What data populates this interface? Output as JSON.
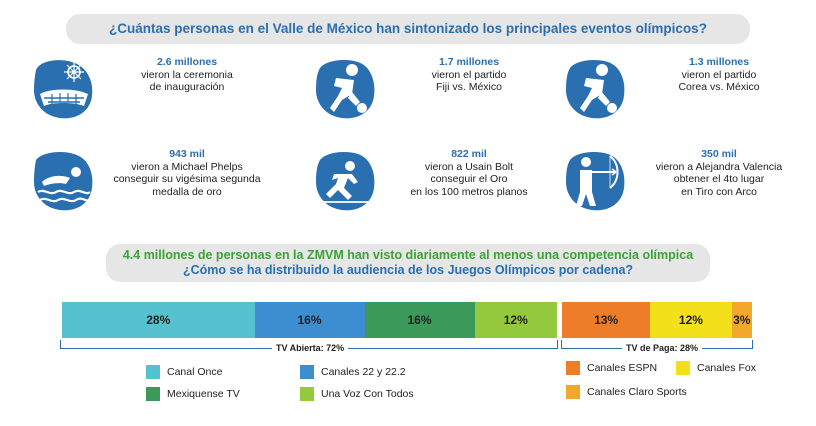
{
  "header": {
    "question": "¿Cuántas personas en el Valle de México han sintonizado los principales eventos olímpicos?"
  },
  "events": [
    {
      "number": "2.6 millones",
      "text": "vieron la ceremonia\nde inauguración",
      "icon": "stadium-icon"
    },
    {
      "number": "1.7 millones",
      "text": "vieron el partido\nFiji vs. México",
      "icon": "football-player-icon"
    },
    {
      "number": "1.3 millones",
      "text": "vieron el partido\nCorea vs. México",
      "icon": "football-player-icon"
    },
    {
      "number": "943 mil",
      "text": "vieron a Michael Phelps\nconseguir su vigésima segunda\nmedalla de oro",
      "icon": "swimmer-icon"
    },
    {
      "number": "822 mil",
      "text": "vieron a Usain Bolt\nconseguir el Oro\nen los 100 metros planos",
      "icon": "sprinter-icon"
    },
    {
      "number": "350 mil",
      "text": "vieron a Alejandra Valencia\nobtener el 4to lugar\nen Tiro con Arco",
      "icon": "archer-icon"
    }
  ],
  "audience_banner": {
    "line1": "4.4 millones de personas en la ZMVM han visto diariamente al menos una competencia olímpica",
    "line2": "¿Cómo se ha distribuido la audiencia de los Juegos Olímpicos por cadena?"
  },
  "colors": {
    "icon_blue": "#2a6fb0",
    "canal_once": "#56c1cf",
    "canales_22": "#3d8ed0",
    "mexiquense": "#3b9a5a",
    "una_voz": "#95c93d",
    "espn": "#ee7d2a",
    "fox": "#f4e01a",
    "claro": "#f3a72c"
  },
  "chart_data": {
    "type": "bar",
    "orientation": "horizontal-stacked",
    "unit": "%",
    "groups": [
      {
        "name": "TV Abierta: 72%",
        "total": 72,
        "series": [
          {
            "name": "Canal Once",
            "value": 28,
            "label": "28%",
            "color": "#56c1cf"
          },
          {
            "name": "Canales 22 y 22.2",
            "value": 16,
            "label": "16%",
            "color": "#3d8ed0"
          },
          {
            "name": "Mexiquense TV",
            "value": 16,
            "label": "16%",
            "color": "#3b9a5a"
          },
          {
            "name": "Una Voz Con Todos",
            "value": 12,
            "label": "12%",
            "color": "#95c93d"
          }
        ]
      },
      {
        "name": "TV de Paga: 28%",
        "total": 28,
        "series": [
          {
            "name": "Canales ESPN",
            "value": 13,
            "label": "13%",
            "color": "#ee7d2a"
          },
          {
            "name": "Canales Fox",
            "value": 12,
            "label": "12%",
            "color": "#f4e01a"
          },
          {
            "name": "Canales Claro Sports",
            "value": 3,
            "label": "3%",
            "color": "#f3a72c"
          }
        ]
      }
    ]
  }
}
